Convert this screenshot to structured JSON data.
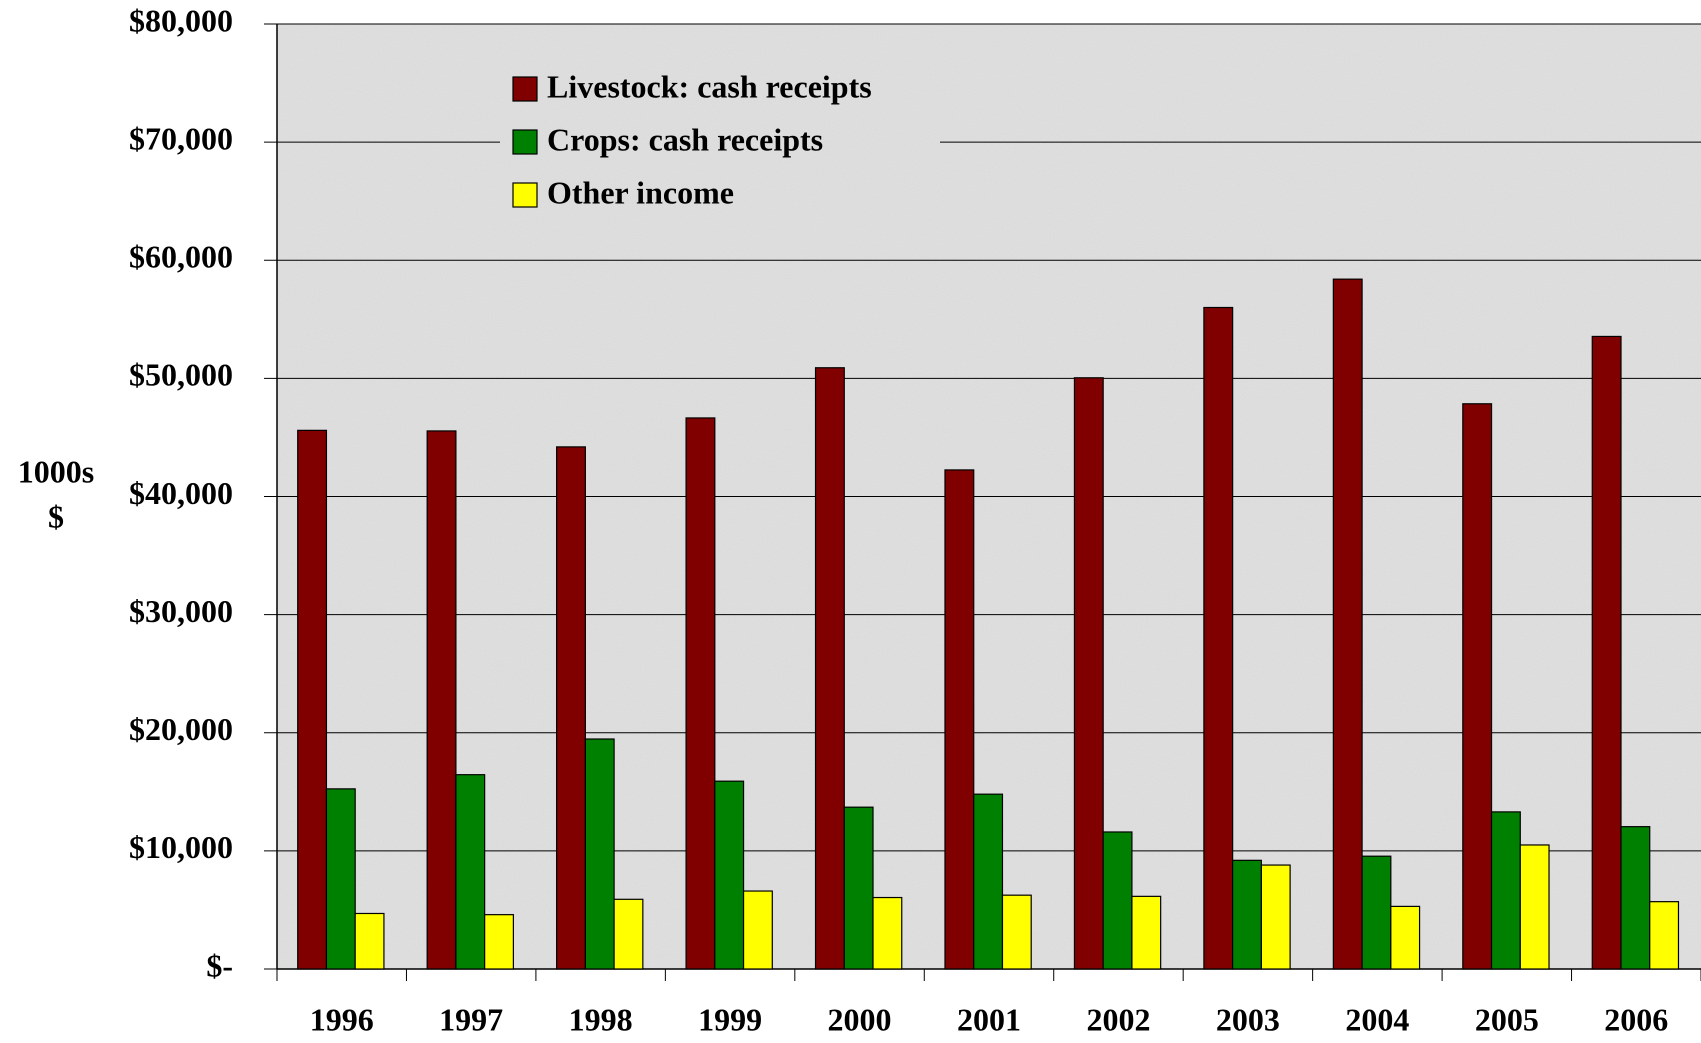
{
  "chart_data": {
    "type": "bar",
    "y_label": [
      "1000s",
      "$"
    ],
    "categories": [
      "1996",
      "1997",
      "1998",
      "1999",
      "2000",
      "2001",
      "2002",
      "2003",
      "2004",
      "2005",
      "2006"
    ],
    "series": [
      {
        "name": "Livestock: cash receipts",
        "color": "#800000",
        "values": [
          45600,
          45550,
          44200,
          46650,
          50900,
          42250,
          50050,
          56000,
          58400,
          47850,
          53550
        ]
      },
      {
        "name": "Crops: cash receipts",
        "color": "#008000",
        "values": [
          15250,
          16450,
          19470,
          15900,
          13700,
          14800,
          11600,
          9200,
          9550,
          13300,
          12050
        ]
      },
      {
        "name": "Other income",
        "color": "#ffff00",
        "values": [
          4700,
          4600,
          5900,
          6600,
          6050,
          6250,
          6150,
          8800,
          5300,
          10500,
          5700
        ]
      }
    ],
    "ylim": [
      0,
      80000
    ],
    "yticks": [
      {
        "value": 0,
        "label": "$-"
      },
      {
        "value": 10000,
        "label": "$10,000"
      },
      {
        "value": 20000,
        "label": "$20,000"
      },
      {
        "value": 30000,
        "label": "$30,000"
      },
      {
        "value": 40000,
        "label": "$40,000"
      },
      {
        "value": 50000,
        "label": "$50,000"
      },
      {
        "value": 60000,
        "label": "$60,000"
      },
      {
        "value": 70000,
        "label": "$70,000"
      },
      {
        "value": 80000,
        "label": "$80,000"
      }
    ],
    "grid": true,
    "legend": "top-left"
  }
}
